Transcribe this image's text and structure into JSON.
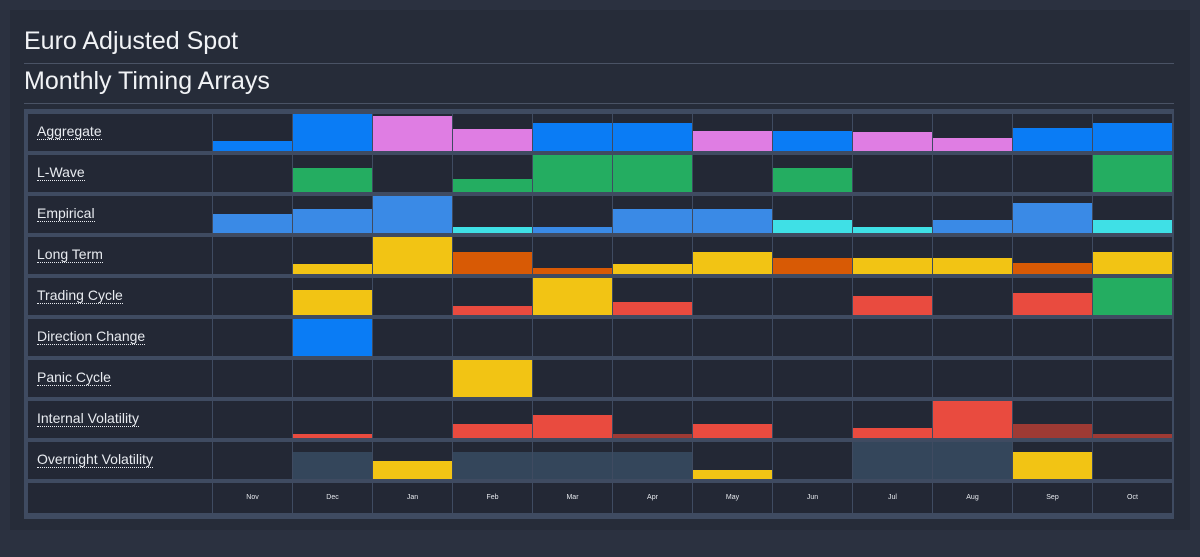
{
  "header": {
    "title": "Euro Adjusted Spot",
    "subtitle": "Monthly Timing Arrays"
  },
  "colors": {
    "blue": "#0a7cf5",
    "pink": "#df7de3",
    "green": "#24ad61",
    "mid_blue": "#3a8ae6",
    "cyan": "#3fe0e6",
    "yellow": "#f2c414",
    "orange": "#d85a05",
    "red": "#e94b3f",
    "dark_red": "#9e3a34",
    "slate": "#34465b"
  },
  "chart_data": {
    "type": "heatmap",
    "months": [
      "Nov",
      "Dec",
      "Jan",
      "Feb",
      "Mar",
      "Apr",
      "May",
      "Jun",
      "Jul",
      "Aug",
      "Sep",
      "Oct"
    ],
    "rows": [
      {
        "name": "Aggregate",
        "values": [
          0.27,
          1.0,
          0.95,
          0.6,
          0.75,
          0.75,
          0.55,
          0.55,
          0.5,
          0.35,
          0.62,
          0.75
        ],
        "colors": [
          "blue",
          "blue",
          "pink",
          "pink",
          "blue",
          "blue",
          "pink",
          "blue",
          "pink",
          "pink",
          "blue",
          "blue"
        ]
      },
      {
        "name": "L-Wave",
        "values": [
          0,
          0.65,
          0,
          0.35,
          1.0,
          1.0,
          0,
          0.65,
          0,
          0,
          0,
          1.0
        ],
        "colors": [
          "",
          "green",
          "",
          "green",
          "green",
          "green",
          "",
          "green",
          "",
          "",
          "",
          "green"
        ]
      },
      {
        "name": "Empirical",
        "values": [
          0.5,
          0.65,
          1.0,
          0.15,
          0.15,
          0.65,
          0.65,
          0.35,
          0.15,
          0.35,
          0.8,
          0.35
        ],
        "colors": [
          "mid_blue",
          "mid_blue",
          "mid_blue",
          "cyan",
          "mid_blue",
          "mid_blue",
          "mid_blue",
          "cyan",
          "cyan",
          "mid_blue",
          "mid_blue",
          "cyan"
        ]
      },
      {
        "name": "Long Term",
        "values": [
          0,
          0.27,
          1.0,
          0.6,
          0.15,
          0.27,
          0.6,
          0.42,
          0.42,
          0.42,
          0.3,
          0.6
        ],
        "colors": [
          "",
          "yellow",
          "yellow",
          "orange",
          "orange",
          "yellow",
          "yellow",
          "orange",
          "yellow",
          "yellow",
          "orange",
          "yellow"
        ]
      },
      {
        "name": "Trading Cycle",
        "values": [
          0,
          0.68,
          0,
          0.25,
          1.0,
          0.35,
          0,
          0.5,
          0.5,
          0,
          0.6,
          1.0
        ],
        "colors": [
          "",
          "yellow",
          "",
          "red",
          "yellow",
          "red",
          "",
          "",
          "red",
          "",
          "red",
          "green"
        ]
      },
      {
        "name": "Direction Change",
        "values": [
          0,
          1.0,
          0,
          0,
          0,
          0,
          0,
          0,
          0,
          0,
          0,
          0
        ],
        "colors": [
          "blue",
          "blue",
          "",
          "",
          "blue",
          "",
          "",
          "",
          "",
          "",
          "",
          ""
        ]
      },
      {
        "name": "Panic Cycle",
        "values": [
          0,
          0,
          0,
          1.0,
          0,
          0,
          0,
          0,
          0,
          0,
          0,
          0
        ],
        "colors": [
          "",
          "",
          "",
          "yellow",
          "",
          "",
          "",
          "",
          "",
          "",
          "",
          ""
        ]
      },
      {
        "name": "Internal Volatility",
        "values": [
          0,
          0.12,
          0,
          0.38,
          0.62,
          0.12,
          0.38,
          0,
          0.27,
          1.0,
          0.38,
          0.12
        ],
        "colors": [
          "",
          "red",
          "",
          "red",
          "red",
          "dark_red",
          "red",
          "",
          "red",
          "red",
          "dark_red",
          "dark_red"
        ]
      },
      {
        "name": "Overnight Volatility",
        "values": [
          0,
          0.72,
          0.48,
          0.72,
          0.72,
          0.72,
          0.25,
          0,
          1.0,
          1.0,
          0.72,
          0
        ],
        "colors": [
          "",
          "slate",
          "yellow",
          "slate",
          "slate",
          "slate",
          "yellow",
          "",
          "slate",
          "slate",
          "yellow",
          ""
        ]
      }
    ]
  }
}
